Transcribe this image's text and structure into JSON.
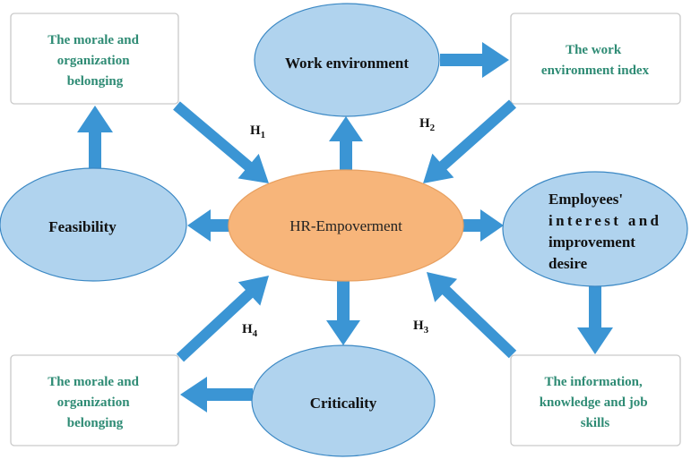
{
  "center": {
    "label": "HR-Empoverment"
  },
  "nodes": {
    "top": {
      "label": "Work environment"
    },
    "left": {
      "label": "Feasibility"
    },
    "right": {
      "lines": [
        "Employees'",
        "interest and",
        "improvement",
        "desire"
      ]
    },
    "bottom": {
      "label": "Criticality"
    }
  },
  "boxes": {
    "top_left": {
      "lines": [
        "The morale and",
        "organization",
        "belonging"
      ]
    },
    "top_right": {
      "lines": [
        "The work",
        "environment index"
      ]
    },
    "bottom_left": {
      "lines": [
        "The morale and",
        "organization",
        "belonging"
      ]
    },
    "bottom_right": {
      "lines": [
        "The information,",
        "knowledge and job",
        "skills"
      ]
    }
  },
  "hypotheses": {
    "h1": {
      "letter": "H",
      "sub": "1"
    },
    "h2": {
      "letter": "H",
      "sub": "2"
    },
    "h3": {
      "letter": "H",
      "sub": "3"
    },
    "h4": {
      "letter": "H",
      "sub": "4"
    }
  },
  "colors": {
    "arrow": "#3b95d4",
    "node_fill": "#b0d3ee",
    "center_fill": "#f7b57a",
    "box_text": "#2e8b74",
    "box_border": "#c9c9c9"
  }
}
